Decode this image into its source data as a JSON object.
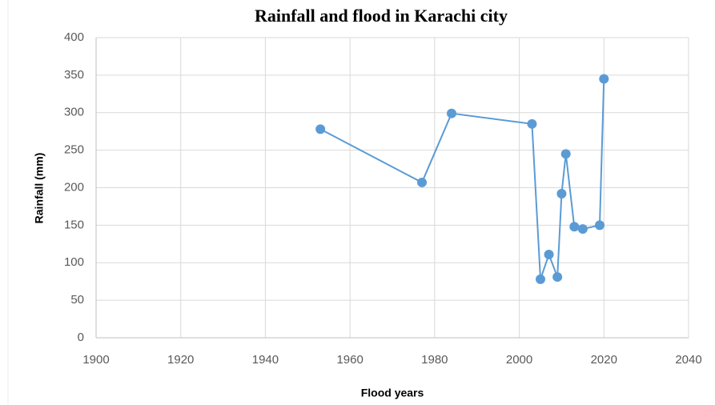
{
  "chart_data": {
    "type": "line",
    "title": "Rainfall and flood in Karachi city",
    "x_label": "Flood years",
    "y_label": "Rainfall (mm)",
    "x": [
      1953,
      1977,
      1984,
      2003,
      2005,
      2007,
      2009,
      2010,
      2011,
      2013,
      2015,
      2019,
      2020
    ],
    "series": [
      {
        "name": "Rainfall",
        "color": "#5b9bd5",
        "values": [
          278,
          207,
          299,
          285,
          78,
          111,
          81,
          192,
          245,
          148,
          145,
          150,
          345
        ]
      }
    ],
    "xlim": [
      1900,
      2040
    ],
    "xticks": [
      1900,
      1920,
      1940,
      1960,
      1980,
      2000,
      2020,
      2040
    ],
    "ylim": [
      0,
      400
    ],
    "yticks": [
      0,
      50,
      100,
      150,
      200,
      250,
      300,
      350,
      400
    ],
    "grid": true
  }
}
